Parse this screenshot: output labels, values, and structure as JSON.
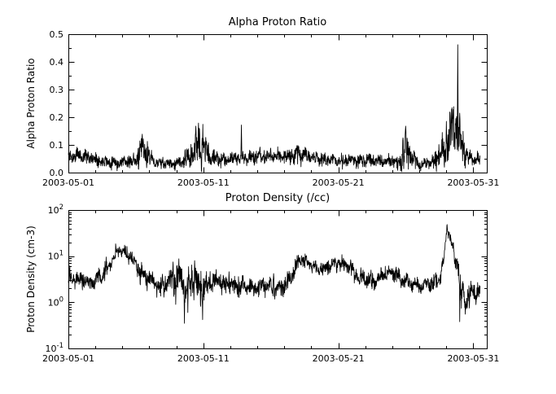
{
  "figure": {
    "background": "#ffffff",
    "line_color": "#000000",
    "axis_color": "#000000"
  },
  "chart_data": [
    {
      "type": "line",
      "title": "Alpha Proton Ratio",
      "ylabel": "Alpha Proton Ratio",
      "xlabel": "",
      "yscale": "linear",
      "ylim": [
        0.0,
        0.5
      ],
      "yticks": [
        {
          "v": 0.0,
          "label": "0.0"
        },
        {
          "v": 0.1,
          "label": "0.1"
        },
        {
          "v": 0.2,
          "label": "0.2"
        },
        {
          "v": 0.3,
          "label": "0.3"
        },
        {
          "v": 0.4,
          "label": "0.4"
        },
        {
          "v": 0.5,
          "label": "0.5"
        }
      ],
      "xlim": [
        1,
        32
      ],
      "xticks": [
        {
          "v": 1,
          "label": "2003-05-01"
        },
        {
          "v": 11,
          "label": "2003-05-11"
        },
        {
          "v": 21,
          "label": "2003-05-21"
        },
        {
          "v": 31,
          "label": "2003-05-31"
        }
      ],
      "x_minor_step": 2,
      "data_range": [
        1.0,
        31.5
      ],
      "samples": 1700,
      "seed": 11,
      "clamp": [
        0.003,
        0.49
      ],
      "envelope": [
        [
          1.0,
          0.058,
          0.013
        ],
        [
          1.8,
          0.062,
          0.015
        ],
        [
          2.6,
          0.055,
          0.013
        ],
        [
          3.3,
          0.045,
          0.012
        ],
        [
          4.2,
          0.038,
          0.011
        ],
        [
          5.2,
          0.038,
          0.011
        ],
        [
          6.0,
          0.045,
          0.013
        ],
        [
          6.4,
          0.075,
          0.028
        ],
        [
          6.9,
          0.07,
          0.025
        ],
        [
          7.3,
          0.038,
          0.01
        ],
        [
          8.4,
          0.032,
          0.009
        ],
        [
          9.4,
          0.036,
          0.011
        ],
        [
          10.0,
          0.055,
          0.025
        ],
        [
          10.5,
          0.1,
          0.042
        ],
        [
          11.0,
          0.092,
          0.04
        ],
        [
          11.5,
          0.058,
          0.018
        ],
        [
          12.2,
          0.048,
          0.012
        ],
        [
          13.4,
          0.05,
          0.012
        ],
        [
          14.6,
          0.056,
          0.012
        ],
        [
          16.0,
          0.058,
          0.013
        ],
        [
          17.4,
          0.06,
          0.014
        ],
        [
          17.9,
          0.072,
          0.02
        ],
        [
          18.4,
          0.066,
          0.018
        ],
        [
          19.2,
          0.05,
          0.012
        ],
        [
          20.4,
          0.046,
          0.012
        ],
        [
          21.6,
          0.042,
          0.012
        ],
        [
          22.6,
          0.046,
          0.014
        ],
        [
          23.6,
          0.042,
          0.012
        ],
        [
          24.6,
          0.038,
          0.012
        ],
        [
          25.5,
          0.042,
          0.015
        ],
        [
          25.95,
          0.085,
          0.04
        ],
        [
          26.35,
          0.055,
          0.02
        ],
        [
          27.0,
          0.032,
          0.009
        ],
        [
          28.0,
          0.036,
          0.011
        ],
        [
          28.6,
          0.065,
          0.028
        ],
        [
          29.2,
          0.115,
          0.048
        ],
        [
          29.8,
          0.145,
          0.058
        ],
        [
          30.15,
          0.095,
          0.038
        ],
        [
          30.6,
          0.058,
          0.016
        ],
        [
          31.0,
          0.046,
          0.012
        ],
        [
          31.5,
          0.048,
          0.012
        ]
      ],
      "spikes": [
        [
          4.6,
          0.006
        ],
        [
          6.2,
          0.012
        ],
        [
          6.55,
          0.122
        ],
        [
          8.9,
          0.007
        ],
        [
          10.45,
          0.168
        ],
        [
          10.72,
          0.158
        ],
        [
          12.3,
          0.016
        ],
        [
          13.82,
          0.172
        ],
        [
          17.95,
          0.098
        ],
        [
          21.3,
          0.012
        ],
        [
          25.4,
          0.008
        ],
        [
          25.98,
          0.168
        ],
        [
          27.1,
          0.006
        ],
        [
          29.0,
          0.185
        ],
        [
          29.3,
          0.205
        ],
        [
          29.5,
          0.228
        ],
        [
          29.7,
          0.195
        ],
        [
          29.85,
          0.462
        ],
        [
          30.0,
          0.215
        ],
        [
          30.4,
          0.016
        ]
      ]
    },
    {
      "type": "line",
      "title": "Proton Density (/cc)",
      "ylabel": "Proton Density (cm-3)",
      "xlabel": "",
      "yscale": "log",
      "ylim": [
        0.1,
        100
      ],
      "yticks": [
        {
          "v": 0.1,
          "base": "10",
          "exp": "-1"
        },
        {
          "v": 1,
          "base": "10",
          "exp": "0"
        },
        {
          "v": 10,
          "base": "10",
          "exp": "1"
        },
        {
          "v": 100,
          "base": "10",
          "exp": "2"
        }
      ],
      "xlim": [
        1,
        32
      ],
      "xticks": [
        {
          "v": 1,
          "label": "2003-05-01"
        },
        {
          "v": 11,
          "label": "2003-05-11"
        },
        {
          "v": 21,
          "label": "2003-05-21"
        },
        {
          "v": 31,
          "label": "2003-05-31"
        }
      ],
      "x_minor_step": 2,
      "data_range": [
        1.0,
        31.5
      ],
      "samples": 1700,
      "seed": 29,
      "clamp": [
        0.14,
        90
      ],
      "envelope": [
        [
          1.0,
          3.6,
          0.1
        ],
        [
          1.8,
          3.0,
          0.11
        ],
        [
          2.6,
          2.7,
          0.11
        ],
        [
          3.2,
          3.2,
          0.11
        ],
        [
          3.7,
          4.5,
          0.11
        ],
        [
          4.3,
          9.0,
          0.1
        ],
        [
          4.7,
          14.0,
          0.08
        ],
        [
          5.1,
          12.0,
          0.09
        ],
        [
          5.7,
          9.0,
          0.1
        ],
        [
          6.3,
          4.5,
          0.12
        ],
        [
          7.0,
          3.0,
          0.11
        ],
        [
          7.8,
          2.2,
          0.13
        ],
        [
          8.6,
          3.2,
          0.18
        ],
        [
          9.3,
          3.4,
          0.22
        ],
        [
          9.8,
          1.8,
          0.26
        ],
        [
          10.3,
          3.0,
          0.2
        ],
        [
          11.0,
          2.1,
          0.2
        ],
        [
          11.6,
          3.0,
          0.14
        ],
        [
          12.5,
          2.5,
          0.12
        ],
        [
          13.5,
          2.2,
          0.12
        ],
        [
          14.5,
          2.0,
          0.12
        ],
        [
          15.5,
          2.3,
          0.12
        ],
        [
          16.5,
          2.0,
          0.12
        ],
        [
          17.3,
          2.6,
          0.12
        ],
        [
          17.8,
          6.0,
          0.1
        ],
        [
          18.2,
          8.5,
          0.08
        ],
        [
          18.8,
          7.0,
          0.09
        ],
        [
          19.5,
          5.0,
          0.1
        ],
        [
          20.2,
          6.0,
          0.1
        ],
        [
          21.0,
          7.2,
          0.09
        ],
        [
          21.6,
          6.5,
          0.1
        ],
        [
          22.3,
          4.0,
          0.12
        ],
        [
          23.0,
          3.0,
          0.12
        ],
        [
          23.6,
          2.6,
          0.12
        ],
        [
          24.3,
          4.0,
          0.1
        ],
        [
          25.0,
          4.6,
          0.1
        ],
        [
          25.8,
          3.0,
          0.1
        ],
        [
          26.5,
          2.5,
          0.11
        ],
        [
          27.3,
          2.2,
          0.1
        ],
        [
          28.0,
          2.6,
          0.1
        ],
        [
          28.5,
          3.2,
          0.1
        ],
        [
          28.8,
          8.0,
          0.08
        ],
        [
          29.05,
          42.0,
          0.06
        ],
        [
          29.3,
          24.0,
          0.08
        ],
        [
          29.6,
          10.0,
          0.1
        ],
        [
          29.9,
          5.5,
          0.12
        ],
        [
          30.05,
          1.3,
          0.2
        ],
        [
          30.35,
          1.0,
          0.18
        ],
        [
          30.7,
          1.5,
          0.15
        ],
        [
          31.0,
          2.0,
          0.13
        ],
        [
          31.3,
          1.6,
          0.15
        ],
        [
          31.5,
          1.8,
          0.12
        ]
      ],
      "spikes": [
        [
          8.75,
          7.5
        ],
        [
          8.95,
          0.9
        ],
        [
          9.6,
          0.35
        ],
        [
          9.85,
          0.6
        ],
        [
          10.35,
          8.0
        ],
        [
          10.95,
          0.42
        ],
        [
          12.9,
          4.6
        ],
        [
          16.2,
          4.2
        ],
        [
          30.0,
          0.38
        ],
        [
          30.45,
          0.75
        ]
      ]
    }
  ]
}
